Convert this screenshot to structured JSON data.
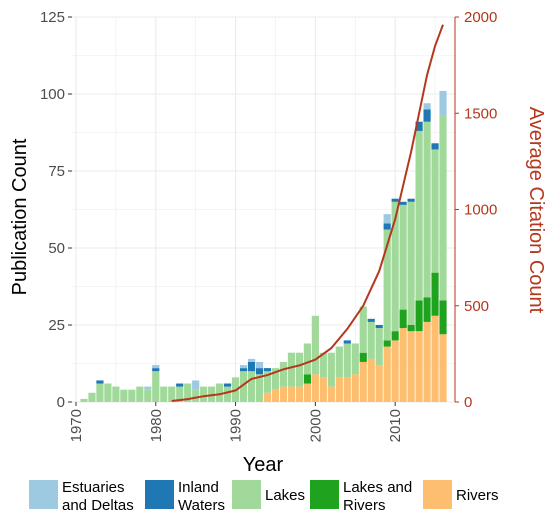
{
  "chart_data": {
    "type": "bar",
    "stacked": true,
    "xlabel": "Year",
    "ylabel": "Publication Count",
    "y2label": "Average Citation Count",
    "xlim": [
      1969.5,
      2017.5
    ],
    "ylim": [
      0,
      125
    ],
    "y2lim": [
      0,
      2000
    ],
    "x_ticks": [
      "1970",
      "1980",
      "1990",
      "2000",
      "2010"
    ],
    "y_ticks": [
      "0",
      "25",
      "50",
      "75",
      "100",
      "125"
    ],
    "y2_ticks": [
      "0",
      "500",
      "1000",
      "1500",
      "2000"
    ],
    "grid": true,
    "legend_position": "bottom",
    "colors": {
      "estuaries": "#9ecae1",
      "inland": "#1f78b4",
      "lakes": "#a1d99b",
      "lakes_rivers": "#1fa31f",
      "rivers": "#fdbf6f",
      "line": "#b5371e",
      "grid": "#ebebeb",
      "axis_text": "#4d4d4d"
    },
    "years": [
      1970,
      1971,
      1972,
      1973,
      1974,
      1975,
      1976,
      1977,
      1978,
      1979,
      1980,
      1981,
      1982,
      1983,
      1984,
      1985,
      1986,
      1987,
      1988,
      1989,
      1990,
      1991,
      1992,
      1993,
      1994,
      1995,
      1996,
      1997,
      1998,
      1999,
      2000,
      2001,
      2002,
      2003,
      2004,
      2005,
      2006,
      2007,
      2008,
      2009,
      2010,
      2011,
      2012,
      2013,
      2014,
      2015,
      2016
    ],
    "series": [
      {
        "name": "Rivers",
        "key": "rivers",
        "values": [
          0,
          0,
          0,
          0,
          0,
          0,
          0,
          0,
          0,
          0,
          0,
          0,
          0,
          0,
          0,
          0,
          0,
          0,
          0,
          0,
          0,
          0,
          0,
          0,
          3,
          4,
          5,
          5,
          5,
          6,
          9,
          8,
          5,
          8,
          8,
          9,
          13,
          14,
          12,
          18,
          20,
          24,
          23,
          23,
          26,
          28,
          22
        ]
      },
      {
        "name": "Lakes and Rivers",
        "key": "lakes_rivers",
        "values": [
          0,
          0,
          0,
          0,
          0,
          0,
          0,
          0,
          0,
          0,
          0,
          0,
          0,
          0,
          0,
          0,
          0,
          0,
          0,
          0,
          0,
          0,
          0,
          0,
          0,
          0,
          0,
          0,
          0,
          3,
          0,
          0,
          0,
          0,
          0,
          0,
          3,
          0,
          0,
          2,
          3,
          6,
          2,
          10,
          8,
          14,
          11
        ]
      },
      {
        "name": "Lakes",
        "key": "lakes",
        "values": [
          0,
          1,
          3,
          6,
          6,
          5,
          4,
          4,
          5,
          4,
          10,
          5,
          5,
          5,
          6,
          4,
          5,
          5,
          6,
          5,
          8,
          10,
          10,
          9,
          7,
          7,
          8,
          11,
          11,
          10,
          19,
          8,
          11,
          10,
          11,
          10,
          15,
          12,
          12,
          36,
          42,
          34,
          40,
          55,
          57,
          40,
          60
        ]
      },
      {
        "name": "Inland Waters",
        "key": "inland",
        "values": [
          0,
          0,
          0,
          1,
          0,
          0,
          0,
          0,
          0,
          0,
          1,
          0,
          0,
          1,
          0,
          0,
          0,
          0,
          0,
          1,
          0,
          1,
          3,
          2,
          1,
          0,
          0,
          0,
          0,
          0,
          0,
          0,
          0,
          0,
          1,
          0,
          0,
          1,
          1,
          2,
          1,
          1,
          1,
          3,
          4,
          2,
          0
        ]
      },
      {
        "name": "Estuaries and Deltas",
        "key": "estuaries",
        "values": [
          0,
          0,
          0,
          0,
          0,
          0,
          0,
          0,
          0,
          1,
          1,
          0,
          0,
          0,
          0,
          3,
          0,
          0,
          0,
          0,
          0,
          1,
          1,
          2,
          0,
          0,
          0,
          0,
          0,
          0,
          0,
          0,
          0,
          0,
          0,
          0,
          0,
          0,
          0,
          3,
          0,
          0,
          0,
          0,
          2,
          0,
          8
        ]
      }
    ],
    "line": {
      "name": "Average Citation Count",
      "years": [
        1982,
        1984,
        1986,
        1988,
        1990,
        1992,
        1994,
        1996,
        1998,
        2000,
        2002,
        2004,
        2006,
        2008,
        2010,
        2012,
        2014,
        2015,
        2016
      ],
      "values": [
        5,
        15,
        30,
        40,
        60,
        120,
        140,
        170,
        190,
        220,
        280,
        380,
        500,
        680,
        950,
        1300,
        1700,
        1850,
        1960
      ]
    }
  },
  "legend": {
    "items": [
      {
        "key": "estuaries",
        "line1": "Estuaries",
        "line2": "and Deltas"
      },
      {
        "key": "inland",
        "line1": "Inland",
        "line2": "Waters"
      },
      {
        "key": "lakes",
        "line1": "Lakes",
        "line2": ""
      },
      {
        "key": "lakes_rivers",
        "line1": "Lakes and",
        "line2": "Rivers"
      },
      {
        "key": "rivers",
        "line1": "Rivers",
        "line2": ""
      }
    ]
  }
}
